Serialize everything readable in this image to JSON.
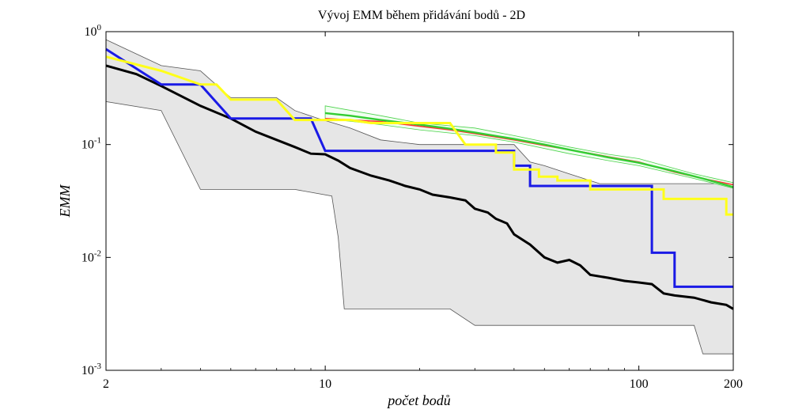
{
  "chart_data": {
    "type": "line",
    "title": "Vývoj EMM během přidávání bodů - 2D",
    "xlabel": "počet bodů",
    "ylabel": "EMM",
    "xscale": "log",
    "yscale": "log",
    "xlim": [
      2,
      200
    ],
    "ylim": [
      0.001,
      1
    ],
    "grid": false,
    "legend": "none",
    "x_ticks": [
      {
        "value": 2,
        "label": "2"
      },
      {
        "value": 10,
        "label": "10"
      },
      {
        "value": 100,
        "label": "100"
      },
      {
        "value": 200,
        "label": "200"
      }
    ],
    "y_ticks": [
      {
        "value": 1,
        "base": "10",
        "exp": "0"
      },
      {
        "value": 0.1,
        "base": "10",
        "exp": "-1"
      },
      {
        "value": 0.01,
        "base": "10",
        "exp": "-2"
      },
      {
        "value": 0.001,
        "base": "10",
        "exp": "-3"
      }
    ],
    "bands": [
      {
        "color": "#e6e6e6",
        "edge_color": "#555555",
        "upper": [
          [
            2,
            0.85
          ],
          [
            3,
            0.5
          ],
          [
            4,
            0.45
          ],
          [
            5,
            0.26
          ],
          [
            7,
            0.26
          ],
          [
            8,
            0.2
          ],
          [
            9.5,
            0.17
          ],
          [
            12,
            0.14
          ],
          [
            15,
            0.11
          ],
          [
            20,
            0.1
          ],
          [
            30,
            0.1
          ],
          [
            40,
            0.1
          ],
          [
            45,
            0.07
          ],
          [
            50,
            0.065
          ],
          [
            60,
            0.055
          ],
          [
            75,
            0.045
          ],
          [
            100,
            0.045
          ],
          [
            110,
            0.045
          ],
          [
            120,
            0.045
          ],
          [
            130,
            0.045
          ],
          [
            160,
            0.045
          ],
          [
            200,
            0.045
          ]
        ],
        "lower": [
          [
            2,
            0.24
          ],
          [
            3,
            0.2
          ],
          [
            4,
            0.04
          ],
          [
            5,
            0.04
          ],
          [
            8,
            0.04
          ],
          [
            10.5,
            0.035
          ],
          [
            11,
            0.015
          ],
          [
            11.5,
            0.0035
          ],
          [
            15,
            0.0035
          ],
          [
            20,
            0.0035
          ],
          [
            25,
            0.0035
          ],
          [
            30,
            0.0025
          ],
          [
            50,
            0.0025
          ],
          [
            80,
            0.0025
          ],
          [
            120,
            0.0025
          ],
          [
            150,
            0.0025
          ],
          [
            160,
            0.0014
          ],
          [
            200,
            0.0014
          ]
        ]
      },
      {
        "color": "#f0fff0",
        "edge_color": "#4cd24c",
        "upper": [
          [
            10,
            0.22
          ],
          [
            15,
            0.18
          ],
          [
            20,
            0.155
          ],
          [
            30,
            0.14
          ],
          [
            40,
            0.12
          ],
          [
            60,
            0.095
          ],
          [
            80,
            0.082
          ],
          [
            100,
            0.075
          ],
          [
            150,
            0.055
          ],
          [
            200,
            0.046
          ]
        ],
        "lower": [
          [
            10,
            0.17
          ],
          [
            15,
            0.15
          ],
          [
            20,
            0.135
          ],
          [
            30,
            0.12
          ],
          [
            40,
            0.105
          ],
          [
            60,
            0.083
          ],
          [
            80,
            0.072
          ],
          [
            100,
            0.065
          ],
          [
            150,
            0.05
          ],
          [
            200,
            0.041
          ]
        ]
      }
    ],
    "series": [
      {
        "color": "#ff3333",
        "width": 1.6,
        "step": false,
        "points": [
          [
            10,
            0.17
          ],
          [
            12,
            0.165
          ],
          [
            15,
            0.16
          ],
          [
            20,
            0.145
          ],
          [
            25,
            0.135
          ],
          [
            30,
            0.125
          ],
          [
            40,
            0.11
          ],
          [
            50,
            0.098
          ],
          [
            60,
            0.09
          ],
          [
            80,
            0.078
          ],
          [
            100,
            0.07
          ],
          [
            130,
            0.057
          ],
          [
            160,
            0.05
          ],
          [
            200,
            0.044
          ]
        ]
      },
      {
        "color": "#33cc33",
        "width": 2.4,
        "step": false,
        "points": [
          [
            10,
            0.19
          ],
          [
            12,
            0.18
          ],
          [
            15,
            0.165
          ],
          [
            20,
            0.15
          ],
          [
            25,
            0.138
          ],
          [
            30,
            0.128
          ],
          [
            40,
            0.112
          ],
          [
            50,
            0.1
          ],
          [
            60,
            0.09
          ],
          [
            80,
            0.077
          ],
          [
            100,
            0.069
          ],
          [
            130,
            0.058
          ],
          [
            160,
            0.05
          ],
          [
            200,
            0.042
          ]
        ]
      },
      {
        "color": "#000000",
        "width": 3,
        "step": false,
        "points": [
          [
            2,
            0.5
          ],
          [
            2.5,
            0.42
          ],
          [
            3,
            0.33
          ],
          [
            4,
            0.22
          ],
          [
            5,
            0.17
          ],
          [
            6,
            0.13
          ],
          [
            7,
            0.11
          ],
          [
            8,
            0.095
          ],
          [
            9,
            0.083
          ],
          [
            10,
            0.082
          ],
          [
            11,
            0.072
          ],
          [
            12,
            0.062
          ],
          [
            14,
            0.053
          ],
          [
            16,
            0.048
          ],
          [
            18,
            0.043
          ],
          [
            20,
            0.04
          ],
          [
            22,
            0.036
          ],
          [
            25,
            0.034
          ],
          [
            28,
            0.032
          ],
          [
            30,
            0.027
          ],
          [
            33,
            0.025
          ],
          [
            35,
            0.022
          ],
          [
            38,
            0.02
          ],
          [
            40,
            0.016
          ],
          [
            45,
            0.013
          ],
          [
            50,
            0.01
          ],
          [
            55,
            0.009
          ],
          [
            60,
            0.0095
          ],
          [
            65,
            0.0085
          ],
          [
            70,
            0.007
          ],
          [
            80,
            0.0066
          ],
          [
            90,
            0.0062
          ],
          [
            100,
            0.006
          ],
          [
            110,
            0.0058
          ],
          [
            120,
            0.0048
          ],
          [
            130,
            0.0046
          ],
          [
            150,
            0.0044
          ],
          [
            170,
            0.004
          ],
          [
            190,
            0.0038
          ],
          [
            200,
            0.0035
          ]
        ]
      },
      {
        "color": "#1a1ae6",
        "width": 3,
        "step": true,
        "points": [
          [
            2,
            0.7
          ],
          [
            3,
            0.34
          ],
          [
            4,
            0.34
          ],
          [
            5,
            0.17
          ],
          [
            9,
            0.17
          ],
          [
            10,
            0.088
          ],
          [
            40,
            0.088
          ],
          [
            40,
            0.065
          ],
          [
            45,
            0.065
          ],
          [
            45,
            0.043
          ],
          [
            110,
            0.043
          ],
          [
            110,
            0.011
          ],
          [
            130,
            0.011
          ],
          [
            130,
            0.0055
          ],
          [
            200,
            0.0055
          ]
        ]
      },
      {
        "color": "#ffff1a",
        "width": 3,
        "step": true,
        "points": [
          [
            2,
            0.6
          ],
          [
            3,
            0.45
          ],
          [
            4,
            0.34
          ],
          [
            4.5,
            0.34
          ],
          [
            5,
            0.25
          ],
          [
            7,
            0.25
          ],
          [
            8,
            0.165
          ],
          [
            12,
            0.165
          ],
          [
            14,
            0.155
          ],
          [
            25,
            0.155
          ],
          [
            28,
            0.1
          ],
          [
            35,
            0.1
          ],
          [
            35,
            0.085
          ],
          [
            40,
            0.085
          ],
          [
            40,
            0.06
          ],
          [
            48,
            0.06
          ],
          [
            48,
            0.052
          ],
          [
            55,
            0.052
          ],
          [
            55,
            0.048
          ],
          [
            70,
            0.048
          ],
          [
            70,
            0.04
          ],
          [
            120,
            0.04
          ],
          [
            120,
            0.033
          ],
          [
            190,
            0.033
          ],
          [
            190,
            0.024
          ],
          [
            200,
            0.024
          ]
        ]
      }
    ]
  }
}
